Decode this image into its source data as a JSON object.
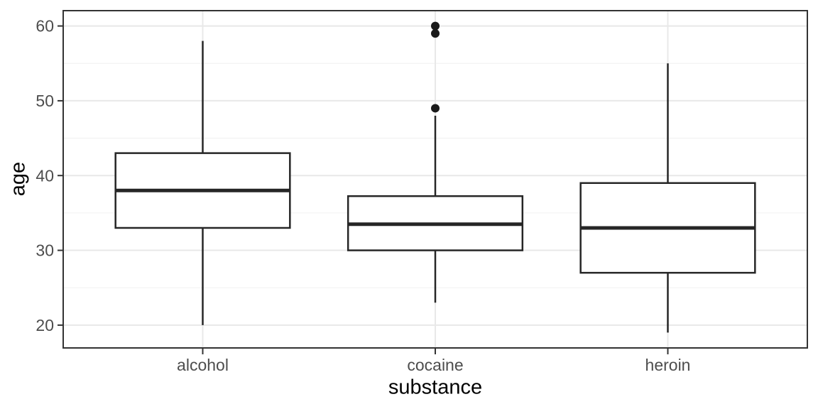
{
  "chart_data": {
    "type": "boxplot",
    "title": "",
    "xlabel": "substance",
    "ylabel": "age",
    "categories": [
      "alcohol",
      "cocaine",
      "heroin"
    ],
    "series": [
      {
        "category": "alcohol",
        "whisker_low": 20,
        "q1": 33,
        "median": 38,
        "q3": 43,
        "whisker_high": 58,
        "outliers": []
      },
      {
        "category": "cocaine",
        "whisker_low": 23,
        "q1": 30,
        "median": 33.5,
        "q3": 37.25,
        "whisker_high": 48,
        "outliers": [
          49,
          59,
          60
        ]
      },
      {
        "category": "heroin",
        "whisker_low": 19,
        "q1": 27,
        "median": 33,
        "q3": 39,
        "whisker_high": 55,
        "outliers": []
      }
    ],
    "y_axis": {
      "major_ticks": [
        20,
        30,
        40,
        50,
        60
      ],
      "major_tick_labels": [
        "20",
        "30",
        "40",
        "50",
        "60"
      ],
      "minor_ticks": [
        25,
        35,
        45,
        55
      ],
      "ylim": [
        16.95,
        62.05
      ]
    },
    "grid": true,
    "legend": false,
    "style": {
      "box_fill": "#ffffff",
      "box_stroke": "#262626",
      "outlier_color": "#1a1a1a",
      "grid_major": "#e8e8e8",
      "grid_minor": "#f0f0f0",
      "panel_border": "#333333",
      "tick_color": "#333333",
      "tick_label_color": "#4d4d4d",
      "title_color": "#000000",
      "panel_background": "#ffffff"
    }
  }
}
